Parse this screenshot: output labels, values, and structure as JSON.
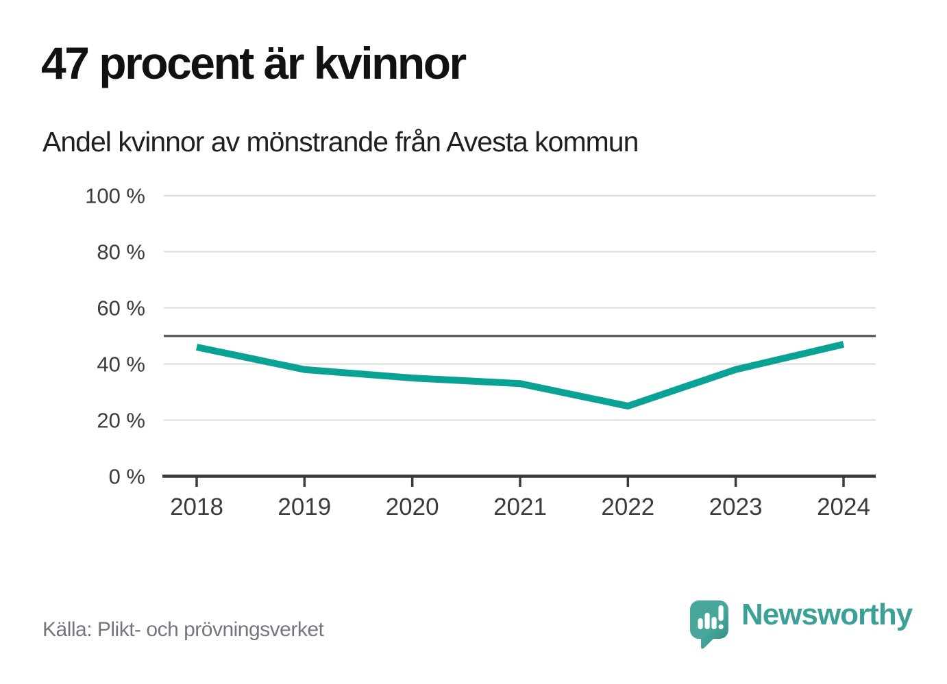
{
  "title": "47 procent är kvinnor",
  "subtitle": "Andel kvinnor av mönstrande från Avesta kommun",
  "source": "Källa: Plikt- och prövningsverket",
  "logo": {
    "text": "Newsworthy",
    "icon": "newsworthy-speech-bubble-bars-icon"
  },
  "colors": {
    "line": "#0aa294",
    "gridline": "#dcdcdc",
    "reference_line": "#5f5f5f",
    "axis": "#3a3a3a",
    "tick_label": "#3b3b3b",
    "logo_teal": "#3ba197",
    "logo_teal_dark": "#2f8c83"
  },
  "chart_data": {
    "type": "line",
    "x": [
      2018,
      2019,
      2020,
      2021,
      2022,
      2023,
      2024
    ],
    "series": [
      {
        "name": "Andel kvinnor av mönstrande",
        "values": [
          46,
          38,
          35,
          33,
          25,
          38,
          47
        ]
      }
    ],
    "unit": "%",
    "ylim": [
      0,
      100
    ],
    "yticks": [
      0,
      20,
      40,
      60,
      80,
      100
    ],
    "ytick_labels": [
      "0 %",
      "20 %",
      "40 %",
      "60 %",
      "80 %",
      "100 %"
    ],
    "xtick_labels": [
      "2018",
      "2019",
      "2020",
      "2021",
      "2022",
      "2023",
      "2024"
    ],
    "reference_line": 50,
    "grid": true,
    "legend": false,
    "title": "47 procent är kvinnor",
    "subtitle": "Andel kvinnor av mönstrande från Avesta kommun"
  }
}
